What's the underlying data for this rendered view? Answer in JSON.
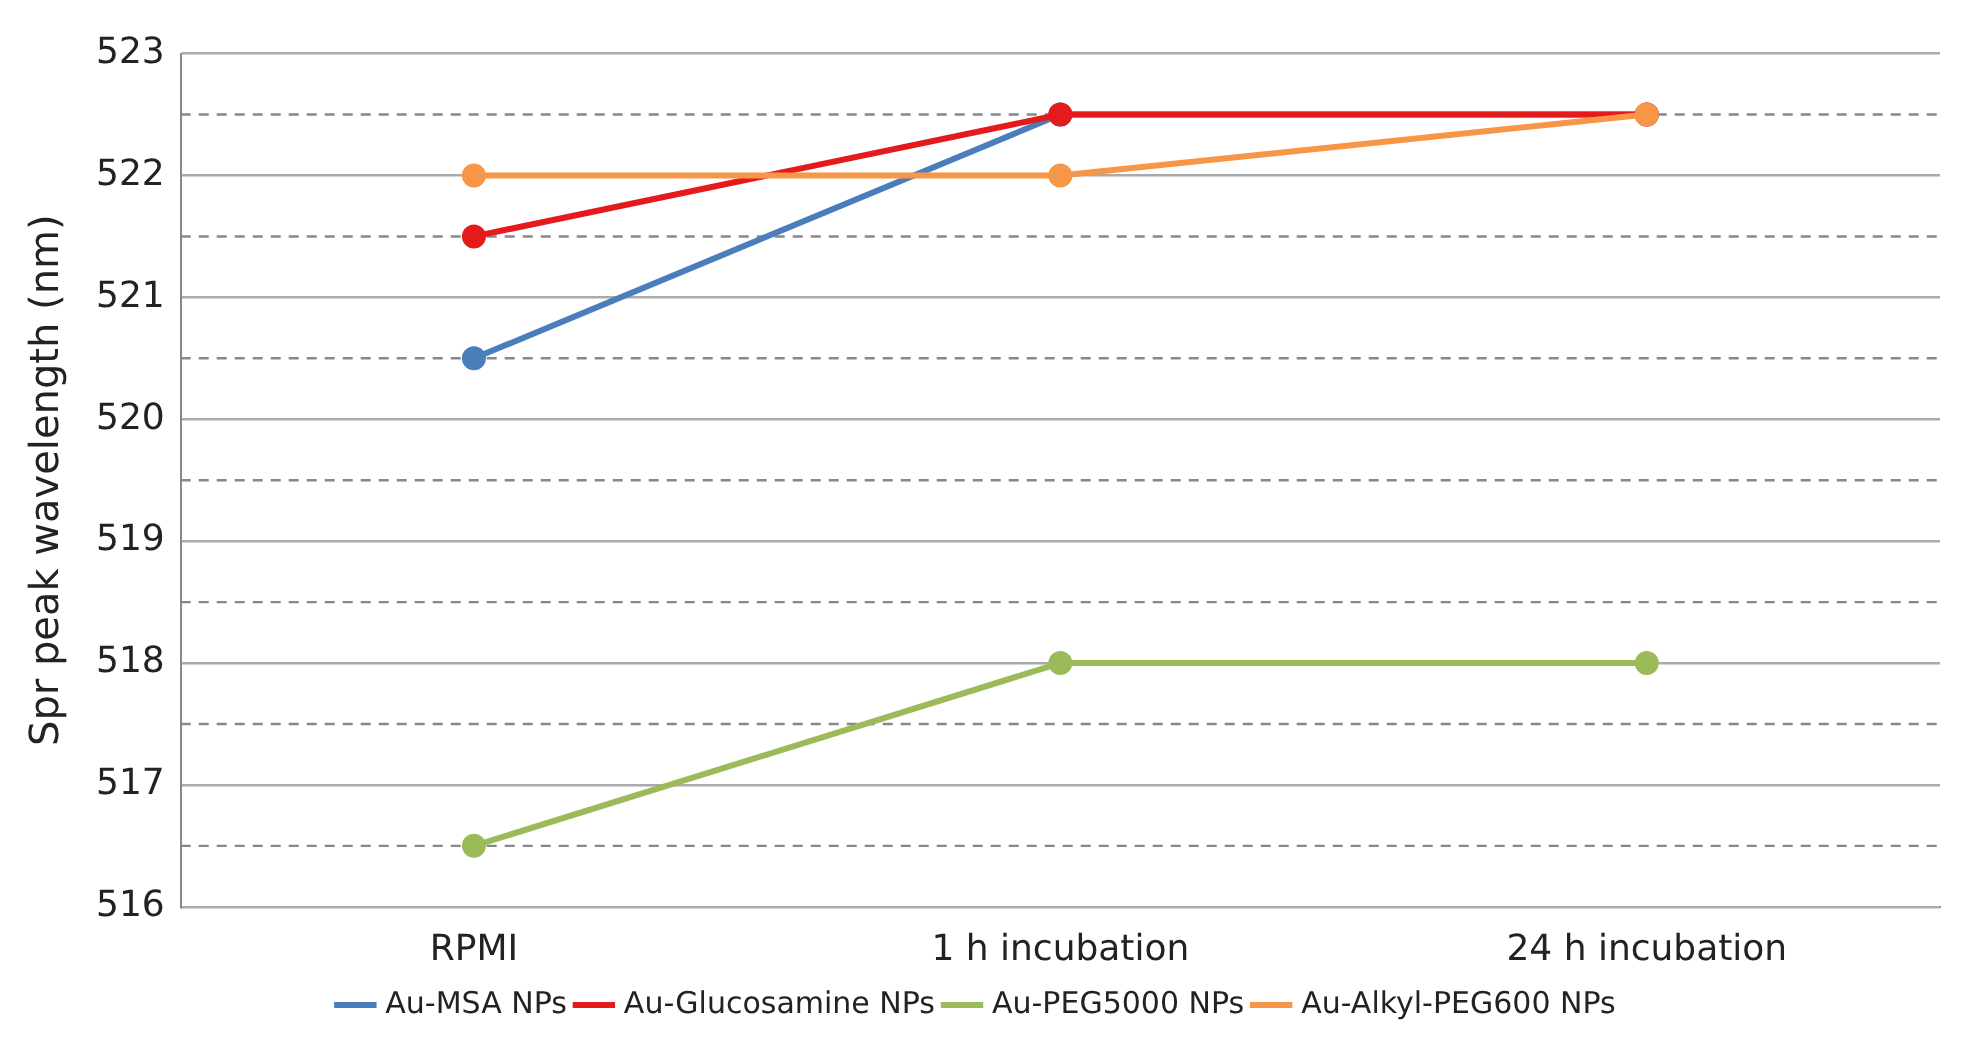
{
  "chart_data": {
    "type": "line",
    "ylabel": "Spr peak wavelength (nm)",
    "categories": [
      "RPMI",
      "1 h incubation",
      "24 h incubation"
    ],
    "series": [
      {
        "name": "Au-MSA NPs",
        "color": "#4a7ebb",
        "values": [
          520.5,
          522.5,
          522.5
        ]
      },
      {
        "name": "Au-Glucosamine NPs",
        "color": "#e41a1c",
        "values": [
          521.5,
          522.5,
          522.5
        ]
      },
      {
        "name": "Au-PEG5000 NPs",
        "color": "#9bbb59",
        "values": [
          516.5,
          518,
          518
        ]
      },
      {
        "name": "Au-Alkyl-PEG600 NPs",
        "color": "#f79646",
        "values": [
          522,
          522,
          522.5
        ]
      }
    ],
    "ylim": [
      516,
      523
    ],
    "yticks": [
      516,
      {
        "value": 516.5,
        "label": null
      },
      517,
      {
        "value": 517.5,
        "label": null
      },
      518,
      {
        "value": 518.5,
        "label": null
      },
      519,
      {
        "value": 519.5,
        "label": null
      },
      520,
      {
        "value": 520.5,
        "label": null
      },
      521,
      {
        "value": 521.5,
        "label": null
      },
      522,
      {
        "value": 522.5,
        "label": null
      },
      523
    ],
    "grid": "y",
    "legend": "bottom",
    "marker": "circle",
    "line_style": "solid"
  }
}
